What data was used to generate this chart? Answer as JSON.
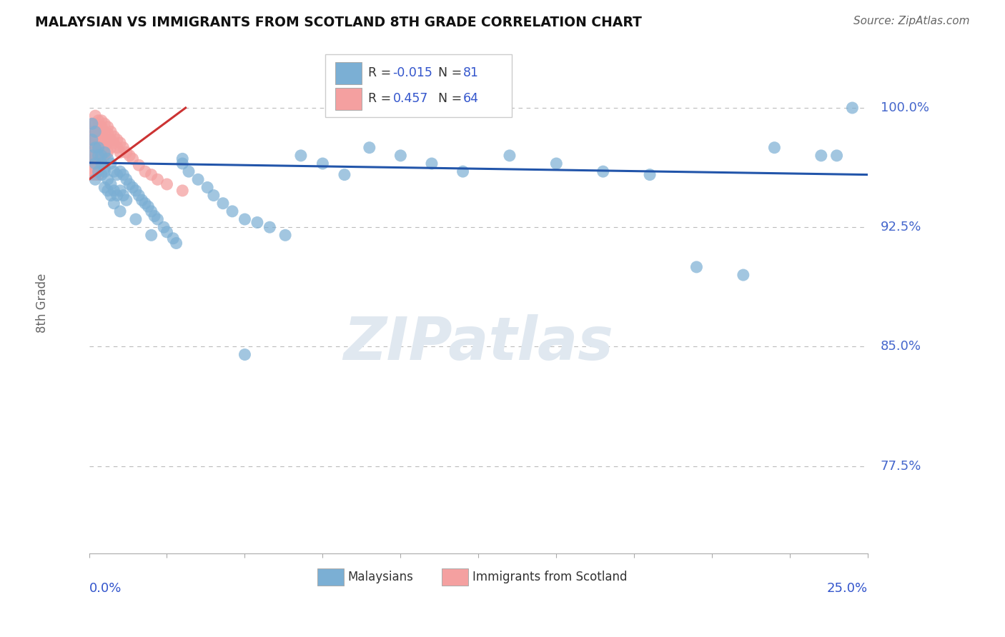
{
  "title": "MALAYSIAN VS IMMIGRANTS FROM SCOTLAND 8TH GRADE CORRELATION CHART",
  "source": "Source: ZipAtlas.com",
  "ylabel": "8th Grade",
  "y_tick_labels": [
    "100.0%",
    "92.5%",
    "85.0%",
    "77.5%"
  ],
  "y_tick_values": [
    1.0,
    0.925,
    0.85,
    0.775
  ],
  "x_min": 0.0,
  "x_max": 0.25,
  "y_min": 0.72,
  "y_max": 1.035,
  "color_blue": "#7BAFD4",
  "color_pink": "#F4A0A0",
  "trendline_blue_color": "#2255AA",
  "trendline_pink_color": "#CC3333",
  "grid_color": "#BBBBBB",
  "malaysian_x": [
    0.001,
    0.001,
    0.002,
    0.002,
    0.002,
    0.003,
    0.003,
    0.004,
    0.004,
    0.005,
    0.005,
    0.005,
    0.006,
    0.006,
    0.007,
    0.007,
    0.007,
    0.008,
    0.008,
    0.009,
    0.009,
    0.01,
    0.01,
    0.011,
    0.011,
    0.012,
    0.012,
    0.013,
    0.014,
    0.015,
    0.016,
    0.017,
    0.018,
    0.019,
    0.02,
    0.021,
    0.022,
    0.024,
    0.025,
    0.027,
    0.028,
    0.03,
    0.032,
    0.035,
    0.038,
    0.04,
    0.043,
    0.046,
    0.05,
    0.054,
    0.058,
    0.063,
    0.068,
    0.075,
    0.082,
    0.09,
    0.1,
    0.11,
    0.12,
    0.135,
    0.15,
    0.165,
    0.18,
    0.195,
    0.21,
    0.22,
    0.235,
    0.245,
    0.001,
    0.002,
    0.003,
    0.004,
    0.005,
    0.006,
    0.008,
    0.01,
    0.015,
    0.02,
    0.03,
    0.05,
    0.24
  ],
  "malaysian_y": [
    0.99,
    0.97,
    0.985,
    0.965,
    0.955,
    0.975,
    0.96,
    0.97,
    0.958,
    0.972,
    0.962,
    0.95,
    0.968,
    0.955,
    0.965,
    0.952,
    0.945,
    0.96,
    0.948,
    0.958,
    0.945,
    0.96,
    0.948,
    0.958,
    0.945,
    0.955,
    0.942,
    0.952,
    0.95,
    0.948,
    0.945,
    0.942,
    0.94,
    0.938,
    0.935,
    0.932,
    0.93,
    0.925,
    0.922,
    0.918,
    0.915,
    0.965,
    0.96,
    0.955,
    0.95,
    0.945,
    0.94,
    0.935,
    0.93,
    0.928,
    0.925,
    0.92,
    0.97,
    0.965,
    0.958,
    0.975,
    0.97,
    0.965,
    0.96,
    0.97,
    0.965,
    0.96,
    0.958,
    0.9,
    0.895,
    0.975,
    0.97,
    1.0,
    0.98,
    0.975,
    0.97,
    0.965,
    0.96,
    0.948,
    0.94,
    0.935,
    0.93,
    0.92,
    0.968,
    0.845,
    0.97
  ],
  "scotland_x": [
    0.001,
    0.001,
    0.001,
    0.001,
    0.001,
    0.001,
    0.001,
    0.001,
    0.001,
    0.001,
    0.002,
    0.002,
    0.002,
    0.002,
    0.002,
    0.002,
    0.002,
    0.002,
    0.002,
    0.002,
    0.003,
    0.003,
    0.003,
    0.003,
    0.003,
    0.003,
    0.003,
    0.003,
    0.003,
    0.004,
    0.004,
    0.004,
    0.004,
    0.004,
    0.004,
    0.004,
    0.005,
    0.005,
    0.005,
    0.005,
    0.005,
    0.006,
    0.006,
    0.006,
    0.006,
    0.007,
    0.007,
    0.007,
    0.008,
    0.008,
    0.009,
    0.009,
    0.01,
    0.01,
    0.011,
    0.012,
    0.013,
    0.014,
    0.016,
    0.018,
    0.02,
    0.022,
    0.025,
    0.03
  ],
  "scotland_y": [
    0.99,
    0.985,
    0.982,
    0.978,
    0.975,
    0.972,
    0.968,
    0.965,
    0.962,
    0.958,
    0.995,
    0.99,
    0.985,
    0.982,
    0.978,
    0.975,
    0.97,
    0.968,
    0.963,
    0.958,
    0.992,
    0.988,
    0.984,
    0.98,
    0.976,
    0.972,
    0.968,
    0.964,
    0.958,
    0.992,
    0.988,
    0.984,
    0.98,
    0.975,
    0.97,
    0.965,
    0.99,
    0.985,
    0.98,
    0.975,
    0.97,
    0.988,
    0.984,
    0.978,
    0.972,
    0.985,
    0.98,
    0.975,
    0.982,
    0.978,
    0.98,
    0.975,
    0.978,
    0.972,
    0.975,
    0.972,
    0.97,
    0.968,
    0.964,
    0.96,
    0.958,
    0.955,
    0.952,
    0.948
  ],
  "blue_trend_x": [
    0.0,
    0.25
  ],
  "blue_trend_y": [
    0.9655,
    0.958
  ],
  "pink_trend_x": [
    0.0,
    0.031
  ],
  "pink_trend_y": [
    0.955,
    1.0
  ]
}
